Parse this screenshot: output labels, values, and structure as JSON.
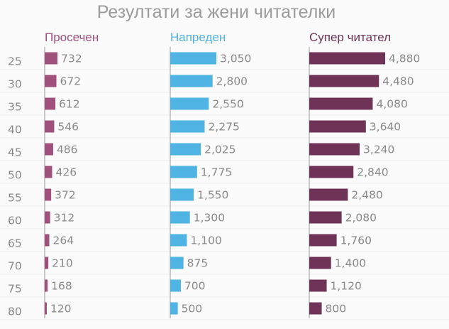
{
  "chart_data": {
    "type": "bar",
    "orientation": "horizontal",
    "title": "Резултати за жени читателки",
    "categories": [
      "25",
      "30",
      "35",
      "40",
      "45",
      "50",
      "55",
      "60",
      "65",
      "70",
      "75",
      "80"
    ],
    "series": [
      {
        "name": "Просечен",
        "color": "#a0507d",
        "values": [
          732,
          672,
          612,
          546,
          486,
          426,
          372,
          312,
          264,
          210,
          168,
          120
        ],
        "labels": [
          "732",
          "672",
          "612",
          "546",
          "486",
          "426",
          "372",
          "312",
          "264",
          "210",
          "168",
          "120"
        ]
      },
      {
        "name": "Напреден",
        "color": "#4fb3e3",
        "values": [
          3050,
          2800,
          2550,
          2275,
          2025,
          1775,
          1550,
          1300,
          1100,
          875,
          700,
          500
        ],
        "labels": [
          "3,050",
          "2,800",
          "2,550",
          "2,275",
          "2,025",
          "1,775",
          "1,550",
          "1,300",
          "1,100",
          "875",
          "700",
          "500"
        ]
      },
      {
        "name": "Супер читател",
        "color": "#6e3356",
        "values": [
          4880,
          4480,
          4080,
          3640,
          3240,
          2840,
          2480,
          2080,
          1760,
          1400,
          1120,
          800
        ],
        "labels": [
          "4,880",
          "4,480",
          "4,080",
          "3,640",
          "3,240",
          "2,840",
          "2,480",
          "2,080",
          "1,760",
          "1,400",
          "1,120",
          "800"
        ]
      }
    ],
    "grid": true,
    "legend": "panel titles above each column"
  }
}
